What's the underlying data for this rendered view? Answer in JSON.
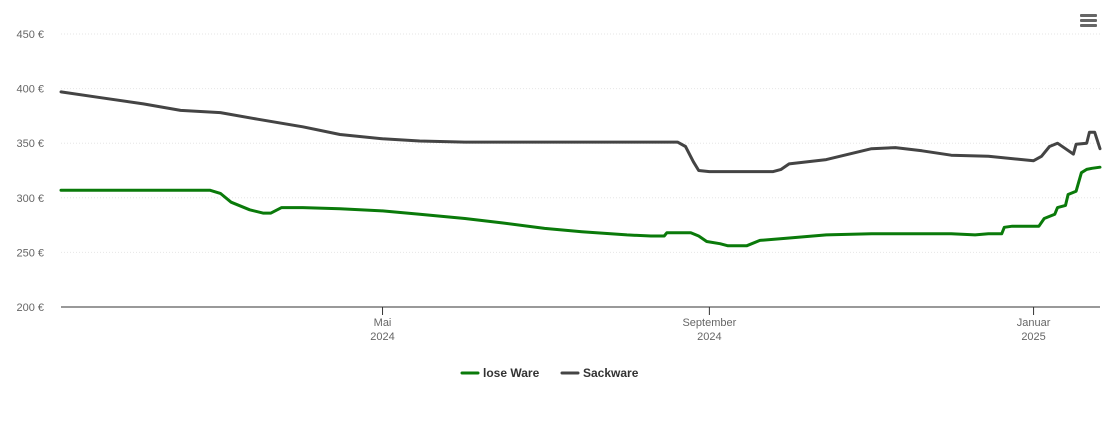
{
  "chart_data": {
    "type": "line",
    "y_unit": "€",
    "ylim": [
      200,
      450
    ],
    "ytick_labels": [
      "450 €",
      "400 €",
      "350 €",
      "300 €",
      "250 €",
      "200 €"
    ],
    "yticks": [
      450,
      400,
      350,
      300,
      250,
      200
    ],
    "xlim": [
      "2024-01-01",
      "2025-01-26"
    ],
    "xticks": [
      {
        "date": "2024-05-01",
        "month": "Mai",
        "year": "2024"
      },
      {
        "date": "2024-09-01",
        "month": "September",
        "year": "2024"
      },
      {
        "date": "2025-01-01",
        "month": "Januar",
        "year": "2025"
      }
    ],
    "grid": true,
    "legend_position": "bottom-center",
    "series": [
      {
        "name": "lose Ware",
        "color": "#0a7a0a",
        "points": [
          [
            "2024-01-01",
            307
          ],
          [
            "2024-01-15",
            307
          ],
          [
            "2024-02-01",
            307
          ],
          [
            "2024-02-26",
            307
          ],
          [
            "2024-03-01",
            304
          ],
          [
            "2024-03-05",
            296
          ],
          [
            "2024-03-12",
            289
          ],
          [
            "2024-03-17",
            286
          ],
          [
            "2024-03-20",
            286
          ],
          [
            "2024-03-24",
            291
          ],
          [
            "2024-04-01",
            291
          ],
          [
            "2024-04-15",
            290
          ],
          [
            "2024-05-01",
            288
          ],
          [
            "2024-05-15",
            285
          ],
          [
            "2024-06-01",
            281
          ],
          [
            "2024-06-15",
            277
          ],
          [
            "2024-07-01",
            272
          ],
          [
            "2024-07-15",
            269
          ],
          [
            "2024-08-01",
            266
          ],
          [
            "2024-08-10",
            265
          ],
          [
            "2024-08-15",
            265
          ],
          [
            "2024-08-16",
            268
          ],
          [
            "2024-08-22",
            268
          ],
          [
            "2024-08-25",
            268
          ],
          [
            "2024-08-28",
            265
          ],
          [
            "2024-08-31",
            260
          ],
          [
            "2024-09-05",
            258
          ],
          [
            "2024-09-08",
            256
          ],
          [
            "2024-09-12",
            256
          ],
          [
            "2024-09-15",
            256
          ],
          [
            "2024-09-20",
            261
          ],
          [
            "2024-09-30",
            263
          ],
          [
            "2024-10-15",
            266
          ],
          [
            "2024-11-01",
            267
          ],
          [
            "2024-11-15",
            267
          ],
          [
            "2024-12-01",
            267
          ],
          [
            "2024-12-10",
            266
          ],
          [
            "2024-12-15",
            267
          ],
          [
            "2024-12-20",
            267
          ],
          [
            "2024-12-21",
            273
          ],
          [
            "2024-12-24",
            274
          ],
          [
            "2025-01-01",
            274
          ],
          [
            "2025-01-03",
            274
          ],
          [
            "2025-01-05",
            281
          ],
          [
            "2025-01-07",
            283
          ],
          [
            "2025-01-09",
            285
          ],
          [
            "2025-01-10",
            291
          ],
          [
            "2025-01-13",
            293
          ],
          [
            "2025-01-14",
            303
          ],
          [
            "2025-01-17",
            306
          ],
          [
            "2025-01-19",
            323
          ],
          [
            "2025-01-21",
            326
          ],
          [
            "2025-01-23",
            327
          ],
          [
            "2025-01-26",
            328
          ]
        ]
      },
      {
        "name": "Sackware",
        "color": "#444444",
        "points": [
          [
            "2024-01-01",
            397
          ],
          [
            "2024-01-15",
            392
          ],
          [
            "2024-02-01",
            386
          ],
          [
            "2024-02-15",
            380
          ],
          [
            "2024-03-01",
            378
          ],
          [
            "2024-03-15",
            372
          ],
          [
            "2024-04-01",
            365
          ],
          [
            "2024-04-15",
            358
          ],
          [
            "2024-05-01",
            354
          ],
          [
            "2024-05-15",
            352
          ],
          [
            "2024-06-01",
            351
          ],
          [
            "2024-07-01",
            351
          ],
          [
            "2024-08-01",
            351
          ],
          [
            "2024-08-20",
            351
          ],
          [
            "2024-08-23",
            347
          ],
          [
            "2024-08-26",
            333
          ],
          [
            "2024-08-28",
            325
          ],
          [
            "2024-09-01",
            324
          ],
          [
            "2024-09-15",
            324
          ],
          [
            "2024-09-25",
            324
          ],
          [
            "2024-09-28",
            326
          ],
          [
            "2024-10-01",
            331
          ],
          [
            "2024-10-15",
            335
          ],
          [
            "2024-11-01",
            345
          ],
          [
            "2024-11-10",
            346
          ],
          [
            "2024-11-20",
            343
          ],
          [
            "2024-12-01",
            339
          ],
          [
            "2024-12-15",
            338
          ],
          [
            "2025-01-01",
            334
          ],
          [
            "2025-01-04",
            338
          ],
          [
            "2025-01-07",
            347
          ],
          [
            "2025-01-10",
            350
          ],
          [
            "2025-01-13",
            345
          ],
          [
            "2025-01-16",
            340
          ],
          [
            "2025-01-17",
            349
          ],
          [
            "2025-01-21",
            350
          ],
          [
            "2025-01-22",
            360
          ],
          [
            "2025-01-24",
            360
          ],
          [
            "2025-01-26",
            345
          ]
        ]
      }
    ]
  },
  "menu": {
    "icon": "hamburger-menu-icon"
  }
}
